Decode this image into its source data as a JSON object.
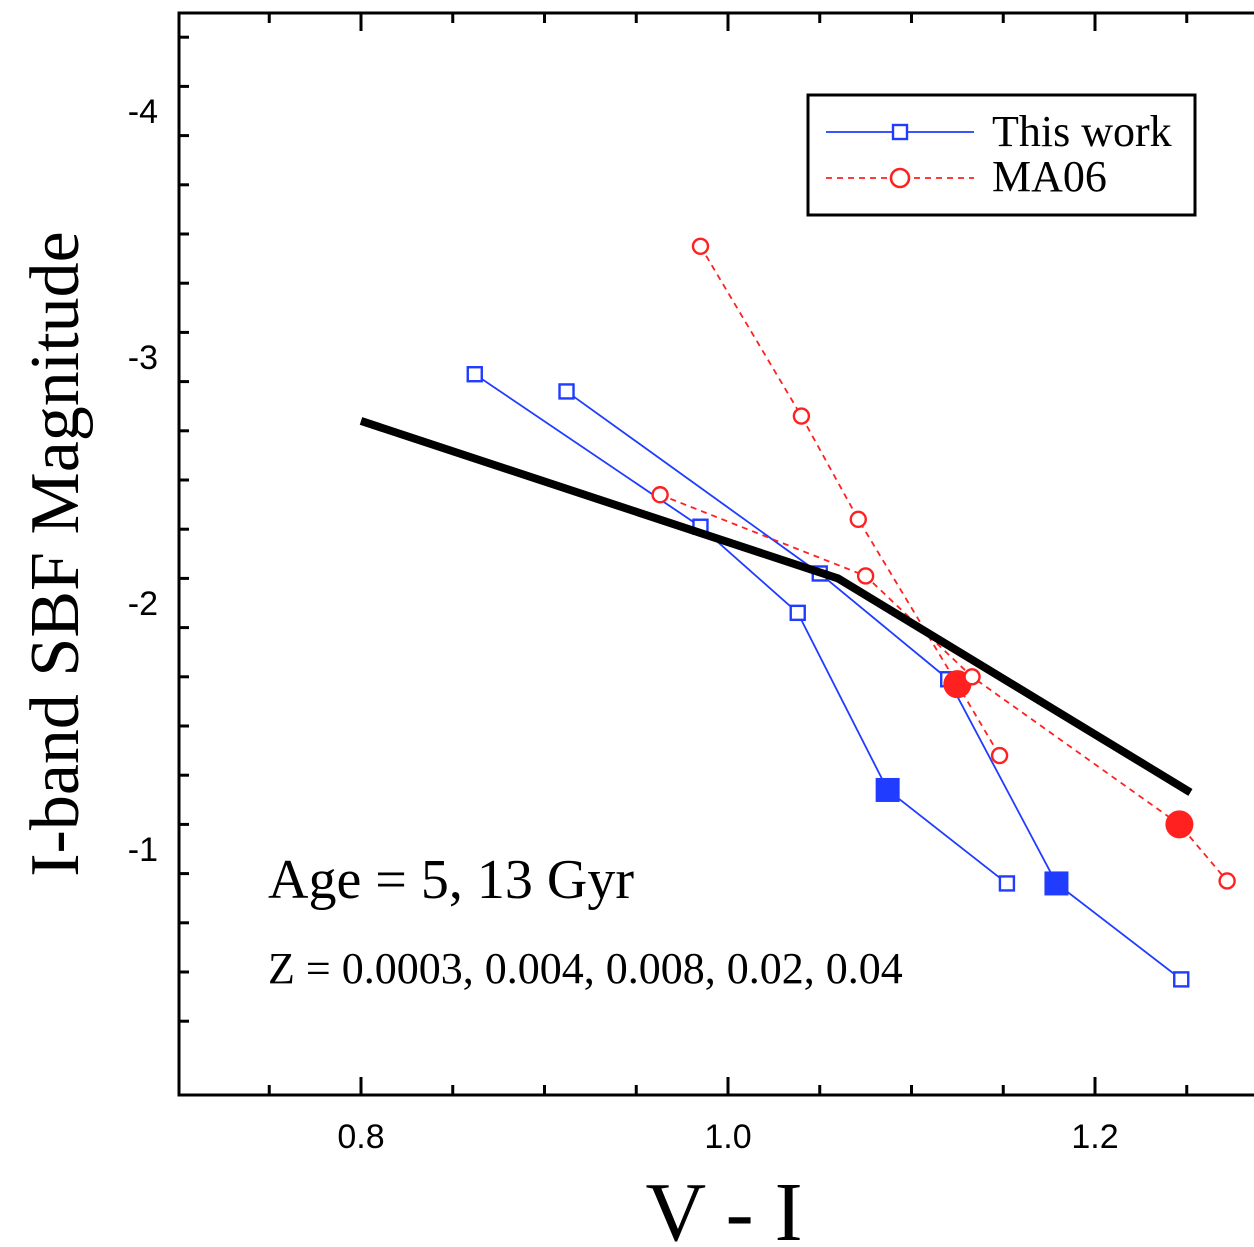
{
  "chart_data": {
    "type": "line",
    "title": "",
    "xlabel": "V - I",
    "ylabel": "I-band SBF Magnitude",
    "xlim": [
      0.7,
      1.25
    ],
    "ylim": [
      -0.3,
      -4.4
    ],
    "y_inverted": true,
    "xticks": [
      0.8,
      1.0,
      1.2
    ],
    "xtick_labels": [
      "0.8",
      "1.0",
      "1.2"
    ],
    "yticks": [
      -1,
      -2,
      -3,
      -4
    ],
    "ytick_labels": [
      "-1",
      "-2",
      "-3",
      "-4"
    ],
    "grid": false,
    "legend_position": "top-right",
    "legend": [
      {
        "label": "This work",
        "color": "#1f3cff",
        "marker": "open-square",
        "line": "solid"
      },
      {
        "label": "MA06",
        "color": "#ff2020",
        "marker": "open-circle",
        "line": "dashed"
      }
    ],
    "series": [
      {
        "name": "This work",
        "group": "Age 5 Gyr",
        "color": "#1f3cff",
        "points": [
          {
            "x": 0.912,
            "y": -2.86,
            "filled": false
          },
          {
            "x": 1.05,
            "y": -2.12,
            "filled": false
          },
          {
            "x": 1.12,
            "y": -1.69,
            "filled": false
          },
          {
            "x": 1.179,
            "y": -0.86,
            "filled": true
          },
          {
            "x": 1.247,
            "y": -0.47,
            "filled": false
          }
        ]
      },
      {
        "name": "This work",
        "group": "Age 13 Gyr",
        "color": "#1f3cff",
        "points": [
          {
            "x": 0.862,
            "y": -2.93,
            "filled": false
          },
          {
            "x": 0.985,
            "y": -2.31,
            "filled": false
          },
          {
            "x": 1.038,
            "y": -1.96,
            "filled": false
          },
          {
            "x": 1.087,
            "y": -1.24,
            "filled": true
          },
          {
            "x": 1.152,
            "y": -0.86,
            "filled": false
          }
        ]
      },
      {
        "name": "MA06",
        "group": "Age 5 Gyr",
        "color": "#ff2020",
        "points": [
          {
            "x": 0.985,
            "y": -3.45,
            "filled": false
          },
          {
            "x": 1.04,
            "y": -2.76,
            "filled": false
          },
          {
            "x": 1.071,
            "y": -2.34,
            "filled": false
          },
          {
            "x": 1.125,
            "y": -1.67,
            "filled": true
          },
          {
            "x": 1.148,
            "y": -1.38,
            "filled": false
          }
        ]
      },
      {
        "name": "MA06",
        "group": "Age 13 Gyr",
        "color": "#ff2020",
        "points": [
          {
            "x": 0.963,
            "y": -2.44,
            "filled": false
          },
          {
            "x": 1.075,
            "y": -2.11,
            "filled": false
          },
          {
            "x": 1.133,
            "y": -1.7,
            "filled": false
          },
          {
            "x": 1.246,
            "y": -1.1,
            "filled": true
          },
          {
            "x": 1.272,
            "y": -0.87,
            "filled": false
          }
        ]
      },
      {
        "name": "",
        "group": "calibration",
        "color": "#000000",
        "style": "thick-line",
        "points": [
          {
            "x": 0.8,
            "y": -2.74
          },
          {
            "x": 1.06,
            "y": -2.1
          },
          {
            "x": 1.252,
            "y": -1.23
          }
        ]
      }
    ],
    "annotations": [
      "Age = 5, 13 Gyr",
      "Z = 0.0003, 0.004, 0.008, 0.02, 0.04"
    ]
  }
}
